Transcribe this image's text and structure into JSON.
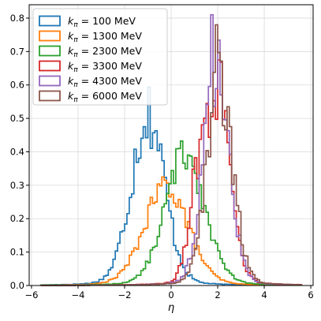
{
  "chart_data": {
    "type": "histogram",
    "xlabel": "η",
    "ylabel": "",
    "xlim": [
      -6.1,
      6.1
    ],
    "ylim": [
      0,
      0.84
    ],
    "xticks": [
      -6,
      -4,
      -2,
      0,
      2,
      4,
      6
    ],
    "xtick_labels": [
      "−6",
      "−4",
      "−2",
      "0",
      "2",
      "4",
      "6"
    ],
    "yticks": [
      0.0,
      0.1,
      0.2,
      0.3,
      0.4,
      0.5,
      0.6,
      0.7,
      0.8
    ],
    "ytick_labels": [
      "0.0",
      "0.1",
      "0.2",
      "0.3",
      "0.4",
      "0.5",
      "0.6",
      "0.7",
      "0.8"
    ],
    "grid": true,
    "legend_position": "top-left",
    "bins": {
      "start": -5.6,
      "width": 0.1
    },
    "series": [
      {
        "name": "100 MeV",
        "legend_prefix": "k",
        "legend_sub": "π",
        "legend_rest": " = 100 MeV",
        "color": "#1f77b4",
        "peaks": [
          {
            "mu": -1.0,
            "sigma": 0.72,
            "amp": 0.52
          }
        ],
        "noise": 0.03,
        "support": [
          -5.6,
          5.6
        ]
      },
      {
        "name": "1300 MeV",
        "legend_prefix": "k",
        "legend_sub": "π",
        "legend_rest": " = 1300 MeV",
        "color": "#ff7f0e",
        "peaks": [
          {
            "mu": -0.2,
            "sigma": 0.95,
            "amp": 0.3
          }
        ],
        "noise": 0.02,
        "support": [
          -5.6,
          5.6
        ]
      },
      {
        "name": "2300 MeV",
        "legend_prefix": "k",
        "legend_sub": "π",
        "legend_rest": " = 2300 MeV",
        "color": "#2ca02c",
        "peaks": [
          {
            "mu": 0.6,
            "sigma": 0.85,
            "amp": 0.4
          }
        ],
        "noise": 0.02,
        "support": [
          -5.6,
          5.6
        ]
      },
      {
        "name": "3300 MeV",
        "legend_prefix": "k",
        "legend_sub": "π",
        "legend_rest": " = 3300 MeV",
        "color": "#d62728",
        "peaks": [
          {
            "mu": 1.95,
            "sigma": 0.55,
            "amp": 0.6
          },
          {
            "mu": 1.0,
            "sigma": 0.35,
            "amp": 0.18
          }
        ],
        "noise": 0.03,
        "support": [
          -5.6,
          5.6
        ]
      },
      {
        "name": "4300 MeV",
        "legend_prefix": "k",
        "legend_sub": "π",
        "legend_rest": " = 4300 MeV",
        "color": "#9467bd",
        "peaks": [
          {
            "mu": 1.95,
            "sigma": 0.55,
            "amp": 0.66
          }
        ],
        "noise": 0.03,
        "support": [
          -5.6,
          5.6
        ],
        "spike": {
          "x": 1.8,
          "y": 0.81
        }
      },
      {
        "name": "6000 MeV",
        "legend_prefix": "k",
        "legend_sub": "π",
        "legend_rest": " = 6000 MeV",
        "color": "#8c564b",
        "peaks": [
          {
            "mu": 2.1,
            "sigma": 0.55,
            "amp": 0.62
          }
        ],
        "noise": 0.03,
        "support": [
          -5.6,
          5.6
        ],
        "spike": {
          "x": 1.9,
          "y": 0.78
        }
      }
    ]
  }
}
